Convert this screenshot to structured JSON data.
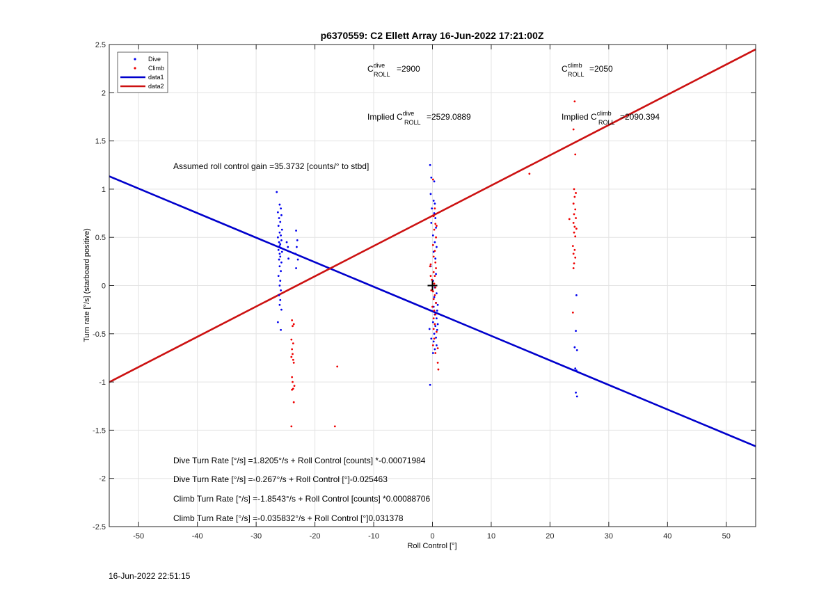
{
  "chart_data": {
    "type": "scatter",
    "title": "p6370559: C2 Ellett Array 16-Jun-2022 17:21:00Z",
    "xlabel": "Roll Control [°]",
    "ylabel": "Turn rate [°/s] (starboard positive)",
    "xlim": [
      -55,
      55
    ],
    "ylim": [
      -2.5,
      2.5
    ],
    "xticks": [
      -50,
      -40,
      -30,
      -20,
      -10,
      0,
      10,
      20,
      30,
      40,
      50
    ],
    "yticks": [
      -2.5,
      -2,
      -1.5,
      -1,
      -0.5,
      0,
      0.5,
      1,
      1.5,
      2,
      2.5
    ],
    "grid": true,
    "legend_position": "top-left",
    "legend": [
      "Dive",
      "Climb",
      "data1",
      "data2"
    ],
    "colors": {
      "dive": "#0000ee",
      "climb": "#ee0000",
      "data1": "#0000cc",
      "data2": "#cc1111",
      "marker": "#000000"
    },
    "series": [
      {
        "name": "Dive",
        "kind": "points",
        "points": [
          [
            -26.5,
            0.97
          ],
          [
            -26.0,
            0.84
          ],
          [
            -25.8,
            0.8
          ],
          [
            -26.3,
            0.76
          ],
          [
            -25.7,
            0.73
          ],
          [
            -26.1,
            0.7
          ],
          [
            -25.9,
            0.66
          ],
          [
            -26.2,
            0.62
          ],
          [
            -25.6,
            0.58
          ],
          [
            -26.0,
            0.55
          ],
          [
            -25.8,
            0.52
          ],
          [
            -26.3,
            0.5
          ],
          [
            -25.7,
            0.47
          ],
          [
            -26.1,
            0.45
          ],
          [
            -25.9,
            0.43
          ],
          [
            -26.0,
            0.41
          ],
          [
            -25.8,
            0.39
          ],
          [
            -26.2,
            0.37
          ],
          [
            -25.6,
            0.35
          ],
          [
            -26.0,
            0.33
          ],
          [
            -25.9,
            0.3
          ],
          [
            -26.1,
            0.27
          ],
          [
            -25.7,
            0.24
          ],
          [
            -26.0,
            0.2
          ],
          [
            -25.8,
            0.15
          ],
          [
            -26.2,
            0.1
          ],
          [
            -25.9,
            0.05
          ],
          [
            -26.0,
            0.0
          ],
          [
            -25.8,
            -0.05
          ],
          [
            -26.1,
            -0.1
          ],
          [
            -25.9,
            -0.15
          ],
          [
            -26.0,
            -0.2
          ],
          [
            -25.7,
            -0.25
          ],
          [
            -26.3,
            -0.38
          ],
          [
            -25.8,
            -0.46
          ],
          [
            -24.8,
            0.45
          ],
          [
            -24.6,
            0.4
          ],
          [
            -24.5,
            0.28
          ],
          [
            -23.2,
            0.57
          ],
          [
            -23.0,
            0.47
          ],
          [
            -23.1,
            0.4
          ],
          [
            -23.3,
            0.33
          ],
          [
            -22.9,
            0.27
          ],
          [
            -23.2,
            0.18
          ],
          [
            -0.4,
            1.25
          ],
          [
            -0.2,
            1.12
          ],
          [
            0.3,
            1.08
          ],
          [
            -0.3,
            0.95
          ],
          [
            0.2,
            0.88
          ],
          [
            0.4,
            0.85
          ],
          [
            -0.1,
            0.8
          ],
          [
            0.3,
            0.75
          ],
          [
            0.5,
            0.7
          ],
          [
            -0.2,
            0.65
          ],
          [
            0.6,
            0.6
          ],
          [
            0.1,
            0.52
          ],
          [
            0.4,
            0.45
          ],
          [
            0.7,
            0.4
          ],
          [
            0.2,
            0.35
          ],
          [
            0.5,
            0.28
          ],
          [
            -0.3,
            0.2
          ],
          [
            0.6,
            0.12
          ],
          [
            0.1,
            0.05
          ],
          [
            0.4,
            -0.02
          ],
          [
            0.7,
            -0.08
          ],
          [
            0.3,
            -0.12
          ],
          [
            0.6,
            -0.18
          ],
          [
            0.2,
            -0.22
          ],
          [
            0.8,
            -0.26
          ],
          [
            0.4,
            -0.3
          ],
          [
            0.7,
            -0.34
          ],
          [
            0.1,
            -0.38
          ],
          [
            0.5,
            -0.42
          ],
          [
            0.8,
            -0.46
          ],
          [
            0.3,
            -0.5
          ],
          [
            0.6,
            -0.54
          ],
          [
            0.2,
            -0.58
          ],
          [
            0.7,
            -0.62
          ],
          [
            0.4,
            -0.66
          ],
          [
            0.1,
            -0.7
          ],
          [
            -0.4,
            -1.03
          ],
          [
            0.9,
            -0.4
          ],
          [
            0.9,
            -0.2
          ],
          [
            -0.5,
            -0.45
          ],
          [
            -0.2,
            -0.55
          ],
          [
            24.5,
            -0.1
          ],
          [
            24.4,
            -0.47
          ],
          [
            24.2,
            -0.64
          ],
          [
            24.6,
            -0.67
          ],
          [
            24.3,
            -0.86
          ],
          [
            24.5,
            -0.88
          ],
          [
            24.4,
            -1.11
          ],
          [
            24.6,
            -1.15
          ]
        ]
      },
      {
        "name": "Climb",
        "kind": "points",
        "points": [
          [
            -23.9,
            -0.36
          ],
          [
            -23.6,
            -0.4
          ],
          [
            -23.8,
            -0.42
          ],
          [
            -24.0,
            -0.56
          ],
          [
            -23.7,
            -0.6
          ],
          [
            -23.9,
            -0.66
          ],
          [
            -23.8,
            -0.71
          ],
          [
            -24.0,
            -0.74
          ],
          [
            -23.7,
            -0.77
          ],
          [
            -23.6,
            -0.8
          ],
          [
            -23.9,
            -0.95
          ],
          [
            -23.8,
            -1.0
          ],
          [
            -23.5,
            -1.04
          ],
          [
            -23.7,
            -1.07
          ],
          [
            -23.9,
            -1.08
          ],
          [
            -23.6,
            -1.21
          ],
          [
            -24.0,
            -1.46
          ],
          [
            -16.2,
            -0.84
          ],
          [
            -16.6,
            -1.46
          ],
          [
            16.5,
            1.16
          ],
          [
            0.1,
            1.1
          ],
          [
            0.4,
            0.8
          ],
          [
            0.2,
            0.72
          ],
          [
            0.5,
            0.64
          ],
          [
            0.7,
            0.62
          ],
          [
            0.3,
            0.58
          ],
          [
            0.6,
            0.5
          ],
          [
            0.1,
            0.42
          ],
          [
            0.4,
            0.36
          ],
          [
            0.2,
            0.3
          ],
          [
            0.5,
            0.24
          ],
          [
            -0.3,
            0.22
          ],
          [
            0.6,
            0.18
          ],
          [
            0.2,
            0.14
          ],
          [
            0.4,
            0.1
          ],
          [
            -0.1,
            0.06
          ],
          [
            0.3,
            0.02
          ],
          [
            0.5,
            -0.02
          ],
          [
            0.1,
            -0.06
          ],
          [
            0.4,
            -0.1
          ],
          [
            0.2,
            -0.14
          ],
          [
            0.6,
            -0.18
          ],
          [
            0.0,
            -0.22
          ],
          [
            0.3,
            -0.26
          ],
          [
            0.5,
            -0.3
          ],
          [
            0.2,
            -0.34
          ],
          [
            0.4,
            -0.4
          ],
          [
            0.7,
            -0.48
          ],
          [
            0.3,
            -0.55
          ],
          [
            0.1,
            -0.62
          ],
          [
            0.5,
            -0.7
          ],
          [
            0.9,
            -0.8
          ],
          [
            1.0,
            -0.87
          ],
          [
            0.9,
            -0.65
          ],
          [
            0.2,
            -0.45
          ],
          [
            -0.4,
            0.2
          ],
          [
            -0.3,
            0.1
          ],
          [
            -0.2,
            -0.05
          ],
          [
            24.2,
            1.91
          ],
          [
            24.0,
            1.62
          ],
          [
            24.3,
            1.36
          ],
          [
            24.1,
            1.0
          ],
          [
            24.4,
            0.96
          ],
          [
            24.2,
            0.92
          ],
          [
            24.0,
            0.85
          ],
          [
            24.3,
            0.79
          ],
          [
            24.1,
            0.74
          ],
          [
            24.4,
            0.7
          ],
          [
            23.3,
            0.69
          ],
          [
            24.0,
            0.65
          ],
          [
            24.2,
            0.61
          ],
          [
            24.5,
            0.59
          ],
          [
            24.1,
            0.55
          ],
          [
            24.3,
            0.51
          ],
          [
            23.9,
            0.41
          ],
          [
            24.2,
            0.37
          ],
          [
            24.0,
            0.33
          ],
          [
            24.3,
            0.29
          ],
          [
            24.1,
            0.23
          ],
          [
            24.0,
            0.18
          ],
          [
            23.9,
            -0.28
          ]
        ]
      },
      {
        "name": "data1",
        "kind": "line",
        "points": [
          [
            -55,
            1.1334
          ],
          [
            55,
            -1.6673
          ]
        ]
      },
      {
        "name": "data2",
        "kind": "line",
        "points": [
          [
            -55,
            -1.0016
          ],
          [
            55,
            2.4499
          ]
        ]
      }
    ],
    "center_marker": [
      0,
      0
    ],
    "annotations": {
      "c_dive_base": "C",
      "c_dive_sup": "dive",
      "c_dive_sub": "ROLL",
      "c_dive_value": "=2900",
      "c_climb_base": "C",
      "c_climb_sup": "climb",
      "c_climb_sub": "ROLL",
      "c_climb_value": "=2050",
      "implied_dive_prefix": "Implied C",
      "implied_dive_sup": "dive",
      "implied_dive_sub": "ROLL",
      "implied_dive_value": "=2529.0889",
      "implied_climb_prefix": "Implied C",
      "implied_climb_sup": "climb",
      "implied_climb_sub": "ROLL",
      "implied_climb_value": "=2090.394",
      "gain": "Assumed roll control gain =35.3732 [counts/° to stbd]",
      "eq1": "Dive Turn Rate [°/s] =1.8205°/s + Roll Control [counts] *-0.00071984",
      "eq2": "Dive Turn Rate [°/s] =-0.267°/s + Roll Control [°]-0.025463",
      "eq3": "Climb Turn Rate [°/s] =-1.8543°/s + Roll Control [counts] *0.00088706",
      "eq4": "Climb Turn Rate [°/s] =-0.035832°/s + Roll Control [°]0.031378"
    }
  },
  "footer": {
    "timestamp": "16-Jun-2022 22:51:15"
  }
}
